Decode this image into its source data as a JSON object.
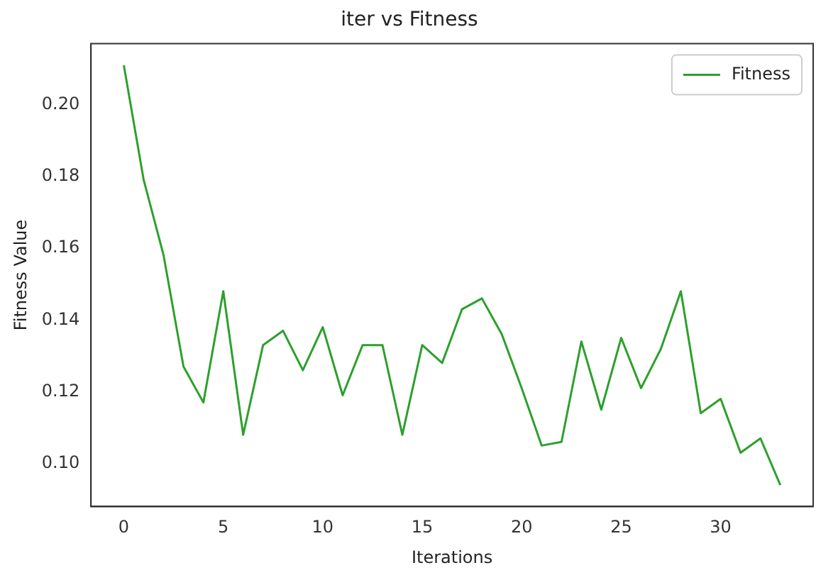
{
  "chart_data": {
    "type": "line",
    "title": "iter vs Fitness",
    "xlabel": "Iterations",
    "ylabel": "Fitness Value",
    "x": [
      0,
      1,
      2,
      3,
      4,
      5,
      6,
      7,
      8,
      9,
      10,
      11,
      12,
      13,
      14,
      15,
      16,
      17,
      18,
      19,
      20,
      21,
      22,
      23,
      24,
      25,
      26,
      27,
      28,
      29,
      30,
      31,
      32,
      33
    ],
    "series": [
      {
        "name": "Fitness",
        "color": "#2ca02c",
        "values": [
          0.211,
          0.179,
          0.158,
          0.127,
          0.117,
          0.148,
          0.108,
          0.133,
          0.137,
          0.126,
          0.138,
          0.119,
          0.133,
          0.133,
          0.108,
          0.133,
          0.128,
          0.143,
          0.146,
          0.136,
          0.121,
          0.105,
          0.106,
          0.134,
          0.115,
          0.135,
          0.121,
          0.132,
          0.148,
          0.114,
          0.118,
          0.103,
          0.107,
          0.094
        ]
      }
    ],
    "xlim": [
      -1.65,
      34.65
    ],
    "xticks": [
      0,
      5,
      10,
      15,
      20,
      25,
      30
    ],
    "ylim": [
      0.088,
      0.217
    ],
    "yticks": [
      {
        "value": 0.1,
        "label": "0.10"
      },
      {
        "value": 0.12,
        "label": "0.12"
      },
      {
        "value": 0.14,
        "label": "0.14"
      },
      {
        "value": 0.16,
        "label": "0.16"
      },
      {
        "value": 0.18,
        "label": "0.18"
      },
      {
        "value": 0.2,
        "label": "0.20"
      }
    ],
    "grid": false,
    "legend": "top right",
    "marker": "none",
    "line_style": "solid"
  }
}
